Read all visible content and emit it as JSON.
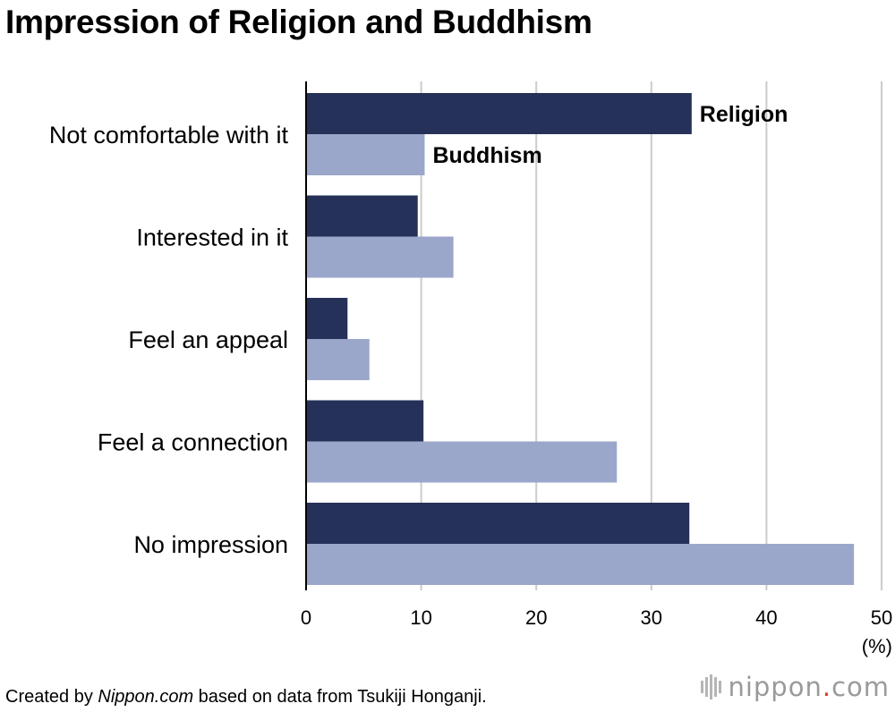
{
  "title": "Impression of Religion and Buddhism",
  "footer": {
    "prefix": "Created by ",
    "brand": "Nippon.com",
    "suffix": " based on data from Tsukiji Honganji."
  },
  "logo": {
    "name": "nippon",
    "dot": ".",
    "tld": "com"
  },
  "colors": {
    "religion": "#263159",
    "buddhism": "#9aa7ca",
    "grid": "#cccccc",
    "axis": "#000000"
  },
  "chart_data": {
    "type": "bar",
    "orientation": "horizontal",
    "title": "Impression of Religion and Buddhism",
    "categories": [
      "Not comfortable with it",
      "Interested in it",
      "Feel an appeal",
      "Feel a connection",
      "No impression"
    ],
    "series": [
      {
        "name": "Religion",
        "values": [
          33.5,
          9.7,
          3.6,
          10.2,
          33.3
        ]
      },
      {
        "name": "Buddhism",
        "values": [
          10.3,
          12.8,
          5.5,
          27.0,
          47.6
        ]
      }
    ],
    "x_ticks": [
      "0",
      "10",
      "20",
      "30",
      "40",
      "50"
    ],
    "xlim": [
      0,
      50
    ],
    "unit_label": "(%)",
    "grid": true,
    "legend": "labels beside first category bars"
  }
}
